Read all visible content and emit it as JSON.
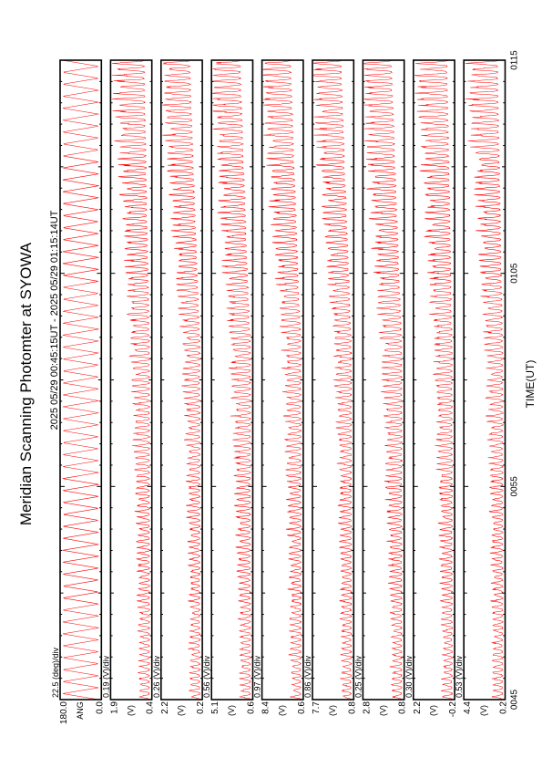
{
  "title": "Meridian Scanning Photomter at SYOWA",
  "time_range": "2025 05/29 00:45:15UT - 2025 05/29 01:15:14UT",
  "xlabel": "TIME(UT)",
  "colors": {
    "trace": "#ff0000",
    "axes": "#000000",
    "background": "#ffffff"
  },
  "chart_data": {
    "type": "line",
    "x_ticks": [
      "0045",
      "0055",
      "0105",
      "0115"
    ],
    "x_unit": "UT (HHMM)",
    "panels": [
      {
        "label": "ANG",
        "scale": "22.5 (deg)/div",
        "y_top": "180.0",
        "y_bottom": "0.0",
        "ylim": [
          0.0,
          180.0
        ],
        "unit": "deg",
        "series": "scan angle"
      },
      {
        "label": "(V)",
        "scale": "0.19 (V)/div",
        "y_top": "1.9",
        "y_bottom": "0.4",
        "ylim": [
          0.4,
          1.9
        ],
        "unit": "V"
      },
      {
        "label": "(V)",
        "scale": "0.26 (V)/div",
        "y_top": "2.2",
        "y_bottom": "0.2",
        "ylim": [
          0.2,
          2.2
        ],
        "unit": "V"
      },
      {
        "label": "(V)",
        "scale": "0.56 (V)/div",
        "y_top": "5.1",
        "y_bottom": "0.6",
        "ylim": [
          0.6,
          5.1
        ],
        "unit": "V"
      },
      {
        "label": "(V)",
        "scale": "0.97 (V)/div",
        "y_top": "8.4",
        "y_bottom": "0.6",
        "ylim": [
          0.6,
          8.4
        ],
        "unit": "V"
      },
      {
        "label": "(V)",
        "scale": "0.86 (V)/div",
        "y_top": "7.7",
        "y_bottom": "0.8",
        "ylim": [
          0.8,
          7.7
        ],
        "unit": "V"
      },
      {
        "label": "(V)",
        "scale": "0.25 (V)/div",
        "y_top": "2.8",
        "y_bottom": "0.8",
        "ylim": [
          0.8,
          2.8
        ],
        "unit": "V"
      },
      {
        "label": "(V)",
        "scale": "0.30 (V)/div",
        "y_top": "2.2",
        "y_bottom": "-0.2",
        "ylim": [
          -0.2,
          2.2
        ],
        "unit": "V"
      },
      {
        "label": "(V)",
        "scale": "0.53 (V)/div",
        "y_top": "4.4",
        "y_bottom": "0.2",
        "ylim": [
          0.2,
          4.4
        ],
        "unit": "V"
      }
    ]
  }
}
